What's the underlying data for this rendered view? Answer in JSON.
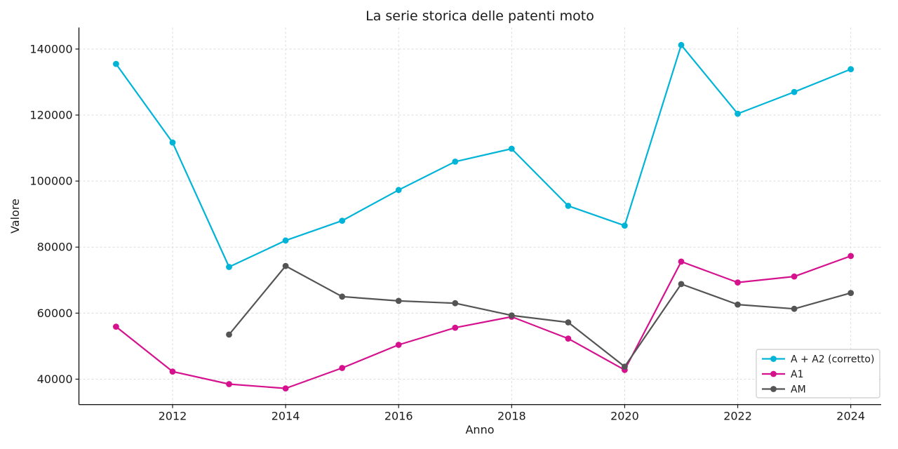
{
  "chart_data": {
    "type": "line",
    "title": "La serie storica delle patenti moto",
    "xlabel": "Anno",
    "ylabel": "Valore",
    "x": [
      2011,
      2012,
      2013,
      2014,
      2015,
      2016,
      2017,
      2018,
      2019,
      2020,
      2021,
      2022,
      2023,
      2024
    ],
    "series": [
      {
        "name": "A + A2 (corretto)",
        "color": "#00b4d8",
        "values": [
          135500,
          111700,
          74000,
          82000,
          88000,
          97300,
          105900,
          109800,
          92500,
          86500,
          141200,
          120400,
          127000,
          133900
        ]
      },
      {
        "name": "A1",
        "color": "#d5118e",
        "values": [
          55900,
          42300,
          38500,
          37200,
          43400,
          50400,
          55600,
          58900,
          52300,
          42800,
          75600,
          69300,
          71100,
          77300
        ]
      },
      {
        "name": "AM",
        "color": "#545454",
        "values": [
          null,
          null,
          53500,
          74300,
          65000,
          63700,
          63000,
          59300,
          57200,
          43800,
          68800,
          62600,
          61300,
          66100
        ]
      }
    ],
    "xticks": [
      2012,
      2014,
      2016,
      2018,
      2020,
      2022,
      2024
    ],
    "yticks": [
      40000,
      60000,
      80000,
      100000,
      120000,
      140000
    ],
    "xlim": [
      2010.343,
      2024.538
    ],
    "ylim": [
      32300,
      146500
    ],
    "grid": true,
    "grid_style": "dashed",
    "legend_position": "lower right",
    "colors": {
      "axis": "#1a1a1a",
      "grid": "#dcdcdc",
      "legend_border": "#cccccc",
      "background": "#ffffff"
    }
  }
}
